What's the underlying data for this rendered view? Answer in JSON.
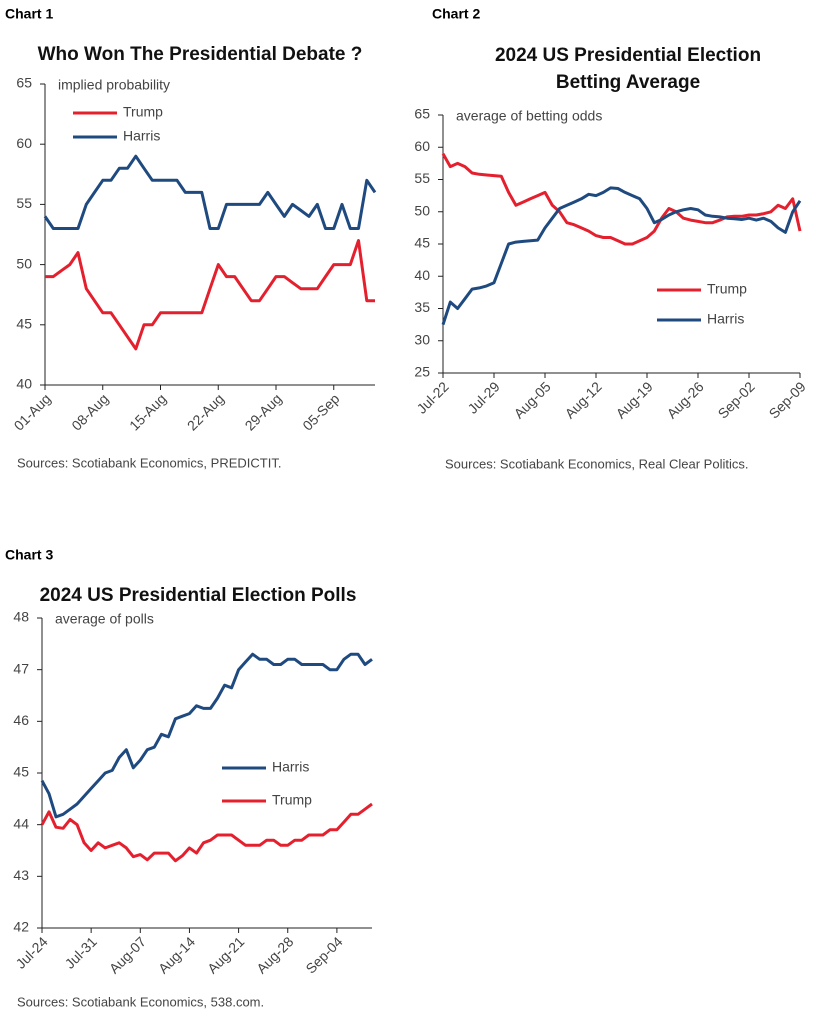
{
  "chart_data": [
    {
      "type": "line",
      "label": "Chart 1",
      "title": [
        "Who Won The Presidential Debate ?"
      ],
      "annotation": "implied probability",
      "source": "Sources: Scotiabank Economics, PREDICTIT.",
      "legend": "upper left",
      "categories": [
        "01-Aug",
        null,
        null,
        null,
        null,
        null,
        null,
        "08-Aug",
        null,
        null,
        null,
        null,
        null,
        null,
        "15-Aug",
        null,
        null,
        null,
        null,
        null,
        null,
        "22-Aug",
        null,
        null,
        null,
        null,
        null,
        null,
        "29-Aug",
        null,
        null,
        null,
        null,
        null,
        null,
        "05-Sep",
        null,
        null,
        null,
        null,
        null
      ],
      "series": [
        {
          "name": "Trump",
          "color": "#e5202e",
          "values": [
            49,
            49,
            49.5,
            50,
            51,
            48,
            47,
            46,
            46,
            45,
            44,
            43,
            45,
            45,
            46,
            46,
            46,
            46,
            46,
            46,
            48,
            50,
            49,
            49,
            48,
            47,
            47,
            48,
            49,
            49,
            48.5,
            48,
            48,
            48,
            49,
            50,
            50,
            50,
            52,
            47,
            47
          ]
        },
        {
          "name": "Harris",
          "color": "#1f4a80",
          "values": [
            54,
            53,
            53,
            53,
            53,
            55,
            56,
            57,
            57,
            58,
            58,
            59,
            58,
            57,
            57,
            57,
            57,
            56,
            56,
            56,
            53,
            53,
            55,
            55,
            55,
            55,
            55,
            56,
            55,
            54,
            55,
            54.5,
            54,
            55,
            53,
            53,
            55,
            53,
            53,
            57,
            56
          ]
        }
      ],
      "ylim": [
        40,
        65
      ],
      "yticks": [
        40,
        45,
        50,
        55,
        60,
        65
      ]
    },
    {
      "type": "line",
      "label": "Chart 2",
      "title": [
        "2024 US Presidential Election",
        "Betting Average"
      ],
      "annotation": "average of betting odds",
      "source": "Sources: Scotiabank Economics, Real Clear Politics.",
      "legend": "lower right",
      "categories": [
        "Jul-22",
        null,
        null,
        null,
        null,
        null,
        null,
        "Jul-29",
        null,
        null,
        null,
        null,
        null,
        null,
        "Aug-05",
        null,
        null,
        null,
        null,
        null,
        null,
        "Aug-12",
        null,
        null,
        null,
        null,
        null,
        null,
        "Aug-19",
        null,
        null,
        null,
        null,
        null,
        null,
        "Aug-26",
        null,
        null,
        null,
        null,
        null,
        null,
        "Sep-02",
        null,
        null,
        null,
        null,
        null,
        null,
        "Sep-09"
      ],
      "series": [
        {
          "name": "Trump",
          "color": "#e5202e",
          "values": [
            59,
            57,
            57.5,
            57,
            56,
            55.8,
            55.7,
            55.6,
            55.5,
            53,
            51,
            51.5,
            52,
            52.5,
            53,
            51,
            50,
            48.3,
            48,
            47.5,
            47,
            46.3,
            46,
            46,
            45.5,
            45,
            45,
            45.5,
            46,
            47,
            49,
            50.5,
            50,
            49,
            48.7,
            48.5,
            48.3,
            48.3,
            48.7,
            49.2,
            49.3,
            49.3,
            49.5,
            49.5,
            49.7,
            50,
            51,
            50.5,
            52,
            47
          ]
        },
        {
          "name": "Harris",
          "color": "#1f4a80",
          "values": [
            32.5,
            36,
            35,
            36.5,
            38,
            38.2,
            38.5,
            39,
            42,
            45,
            45.3,
            45.4,
            45.5,
            45.6,
            47.5,
            49,
            50.5,
            51,
            51.5,
            52,
            52.7,
            52.5,
            53,
            53.7,
            53.6,
            53,
            52.5,
            52,
            50.5,
            48.3,
            48.8,
            49.5,
            50,
            50.3,
            50.5,
            50.3,
            49.5,
            49.3,
            49.2,
            49,
            48.9,
            48.8,
            49,
            48.7,
            49,
            48.5,
            47.5,
            46.8,
            50,
            51.7
          ]
        }
      ],
      "ylim": [
        25,
        65
      ],
      "yticks": [
        25,
        30,
        35,
        40,
        45,
        50,
        55,
        60,
        65
      ]
    },
    {
      "type": "line",
      "label": "Chart 3",
      "title": [
        "2024 US Presidential Election Polls"
      ],
      "annotation": "average of polls",
      "source": "Sources: Scotiabank Economics, 538.com.",
      "legend": "center",
      "categories": [
        "Jul-24",
        null,
        null,
        null,
        null,
        null,
        null,
        "Jul-31",
        null,
        null,
        null,
        null,
        null,
        null,
        "Aug-07",
        null,
        null,
        null,
        null,
        null,
        null,
        "Aug-14",
        null,
        null,
        null,
        null,
        null,
        null,
        "Aug-21",
        null,
        null,
        null,
        null,
        null,
        null,
        "Aug-28",
        null,
        null,
        null,
        null,
        null,
        null,
        "Sep-04",
        null,
        null,
        null,
        null,
        null
      ],
      "series": [
        {
          "name": "Harris",
          "color": "#1f4a80",
          "values": [
            44.85,
            44.6,
            44.15,
            44.2,
            44.3,
            44.4,
            44.55,
            44.7,
            44.85,
            45.0,
            45.05,
            45.3,
            45.45,
            45.1,
            45.25,
            45.45,
            45.5,
            45.75,
            45.7,
            46.05,
            46.1,
            46.15,
            46.3,
            46.25,
            46.25,
            46.45,
            46.7,
            46.65,
            47.0,
            47.15,
            47.3,
            47.2,
            47.2,
            47.1,
            47.1,
            47.2,
            47.2,
            47.1,
            47.1,
            47.1,
            47.1,
            47.0,
            47.0,
            47.2,
            47.3,
            47.3,
            47.1,
            47.2
          ]
        },
        {
          "name": "Trump",
          "color": "#e5202e",
          "values": [
            44.0,
            44.25,
            43.95,
            43.93,
            44.1,
            44.0,
            43.65,
            43.5,
            43.65,
            43.55,
            43.6,
            43.65,
            43.55,
            43.38,
            43.42,
            43.32,
            43.45,
            43.45,
            43.45,
            43.3,
            43.4,
            43.55,
            43.45,
            43.65,
            43.7,
            43.8,
            43.8,
            43.8,
            43.7,
            43.6,
            43.6,
            43.6,
            43.7,
            43.7,
            43.6,
            43.6,
            43.7,
            43.7,
            43.8,
            43.8,
            43.8,
            43.9,
            43.9,
            44.05,
            44.2,
            44.2,
            44.3,
            44.4
          ]
        }
      ],
      "ylim": [
        42,
        48
      ],
      "yticks": [
        42,
        43,
        44,
        45,
        46,
        47,
        48
      ]
    }
  ]
}
